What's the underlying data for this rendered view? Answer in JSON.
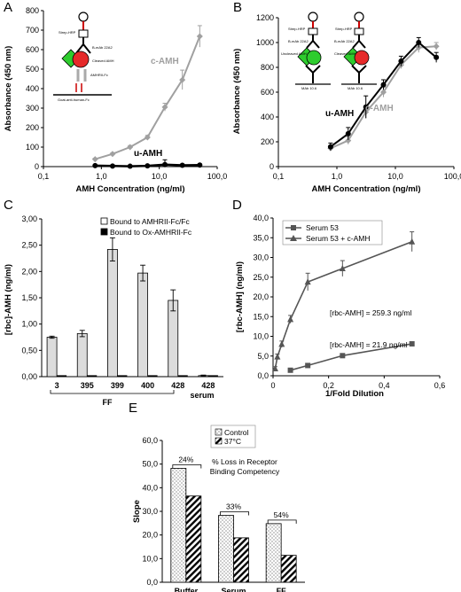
{
  "figure": {
    "panels": [
      {
        "letter": "A"
      },
      {
        "letter": "B"
      },
      {
        "letter": "C"
      },
      {
        "letter": "D"
      },
      {
        "letter": "E"
      }
    ]
  },
  "diagram_text": {
    "strep_hrp": "Strep-HRP",
    "b_mab": "B-mAb 22A2",
    "cleaved_amh": "Cleaved AMH",
    "uncleaved_amh": "Uncleaved AMH",
    "amhrii_fc": "AMHRII-Fc",
    "goat_anti": "Goat-anti-human-Fc",
    "mab": "MAb 10.6"
  },
  "colors": {
    "c_amh": "#a0a0a0",
    "u_amh": "#000000",
    "serum53": "#555555",
    "bar_light": "#dcdcdc",
    "bar_dark": "#000000",
    "green_tri": "#2ecc2e",
    "red_circle": "#e62a2a"
  },
  "chart_data": [
    {
      "panel": "A",
      "type": "line",
      "xscale": "log",
      "xlabel": "AMH Concentration (ng/ml)",
      "ylabel": "Absorbance (450 nm)",
      "xlim": [
        0.1,
        100
      ],
      "ylim": [
        0,
        800
      ],
      "xticks": [
        "0,1",
        "1,0",
        "10,0",
        "100,0"
      ],
      "yticks": [
        "0",
        "100",
        "200",
        "300",
        "400",
        "500",
        "600",
        "700",
        "800"
      ],
      "series": [
        {
          "name": "c-AMH",
          "x": [
            0.78,
            1.56,
            3.13,
            6.25,
            12.5,
            25,
            50
          ],
          "y": [
            38,
            65,
            100,
            150,
            305,
            445,
            668
          ],
          "err": [
            5,
            6,
            8,
            10,
            20,
            50,
            55
          ]
        },
        {
          "name": "u-AMH",
          "x": [
            0.78,
            1.56,
            3.13,
            6.25,
            12.5,
            25,
            50
          ],
          "y": [
            5,
            3,
            2,
            4,
            10,
            7,
            8
          ],
          "err": [
            2,
            2,
            2,
            3,
            25,
            5,
            4
          ]
        }
      ]
    },
    {
      "panel": "B",
      "type": "line",
      "xscale": "log",
      "xlabel": "AMH Concentration (ng/ml)",
      "ylabel": "Absorbance (450 nm)",
      "xlim": [
        0.1,
        100
      ],
      "ylim": [
        0,
        1200
      ],
      "xticks": [
        "0,1",
        "1,0",
        "10,0",
        "100,0"
      ],
      "yticks": [
        "0",
        "200",
        "400",
        "600",
        "800",
        "1000",
        "1200"
      ],
      "series": [
        {
          "name": "c-AMH",
          "x": [
            0.78,
            1.56,
            3.13,
            6.25,
            12.5,
            25,
            50
          ],
          "y": [
            148,
            210,
            440,
            600,
            820,
            960,
            970
          ],
          "err": [
            20,
            30,
            50,
            40,
            30,
            40,
            30
          ]
        },
        {
          "name": "u-AMH",
          "x": [
            0.78,
            1.56,
            3.13,
            6.25,
            12.5,
            25,
            50
          ],
          "y": [
            160,
            265,
            480,
            660,
            850,
            1000,
            880
          ],
          "err": [
            30,
            50,
            90,
            40,
            40,
            40,
            40
          ]
        }
      ]
    },
    {
      "panel": "C",
      "type": "bar",
      "ylabel": "[rbc]-AMH (ng/ml)",
      "ylim": [
        0,
        3
      ],
      "yticks": [
        "0,00",
        "0,50",
        "1,00",
        "1,50",
        "2,00",
        "2,50",
        "3,00"
      ],
      "categories": [
        "3",
        "395",
        "399",
        "400",
        "428",
        "428"
      ],
      "group_labels": [
        "FF",
        "serum"
      ],
      "series": [
        {
          "name": "Bound to AMHRII-Fc/Fc",
          "values": [
            0.75,
            0.82,
            2.42,
            1.97,
            1.45,
            0.02
          ],
          "err": [
            0.02,
            0.06,
            0.22,
            0.15,
            0.2,
            0.01
          ]
        },
        {
          "name": "Bound to Ox-AMHRII-Fc",
          "values": [
            0.01,
            0.01,
            0.01,
            0.01,
            0.01,
            0.01
          ],
          "err": [
            0,
            0,
            0,
            0,
            0,
            0
          ]
        }
      ]
    },
    {
      "panel": "D",
      "type": "line",
      "xlabel": "1/Fold Dilution",
      "ylabel": "[rbc-AMH] (ng/ml)",
      "xlim": [
        0,
        0.6
      ],
      "ylim": [
        0,
        40
      ],
      "xticks": [
        "0",
        "0,2",
        "0,4",
        "0,6"
      ],
      "yticks": [
        "0,0",
        "5,0",
        "10,0",
        "15,0",
        "20,0",
        "25,0",
        "30,0",
        "35,0",
        "40,0"
      ],
      "annotations": [
        "[rbc-AMH] = 259.3 ng/ml",
        "[rbc-AMH] = 21.9 ng/ml"
      ],
      "series": [
        {
          "name": "Serum 53",
          "x": [
            0.0625,
            0.125,
            0.25,
            0.5
          ],
          "y": [
            1.4,
            2.6,
            5.1,
            8.1
          ],
          "err": [
            0.3,
            0.3,
            0.3,
            0.3
          ]
        },
        {
          "name": "Serum 53   + c-AMH",
          "x": [
            0.00781,
            0.0156,
            0.03125,
            0.0625,
            0.125,
            0.25,
            0.5
          ],
          "y": [
            1.8,
            4.8,
            8.0,
            14.3,
            23.8,
            27.2,
            34.0
          ],
          "err": [
            0.5,
            0.7,
            0.8,
            1.0,
            2.2,
            2.0,
            2.5
          ]
        }
      ]
    },
    {
      "panel": "E",
      "type": "bar",
      "ylabel": "Slope",
      "ylim": [
        0,
        60
      ],
      "yticks": [
        "0,0",
        "10,0",
        "20,0",
        "30,0",
        "40,0",
        "50,0",
        "60,0"
      ],
      "categories": [
        "Buffer",
        "Serum",
        "FF"
      ],
      "annotations": [
        "% Loss in Receptor",
        "Binding Competency"
      ],
      "pct_labels": [
        "24%",
        "33%",
        "54%"
      ],
      "series": [
        {
          "name": "Control",
          "values": [
            48.2,
            28.3,
            24.8
          ]
        },
        {
          "name": "37°C",
          "values": [
            36.5,
            18.8,
            11.4
          ]
        }
      ]
    }
  ]
}
